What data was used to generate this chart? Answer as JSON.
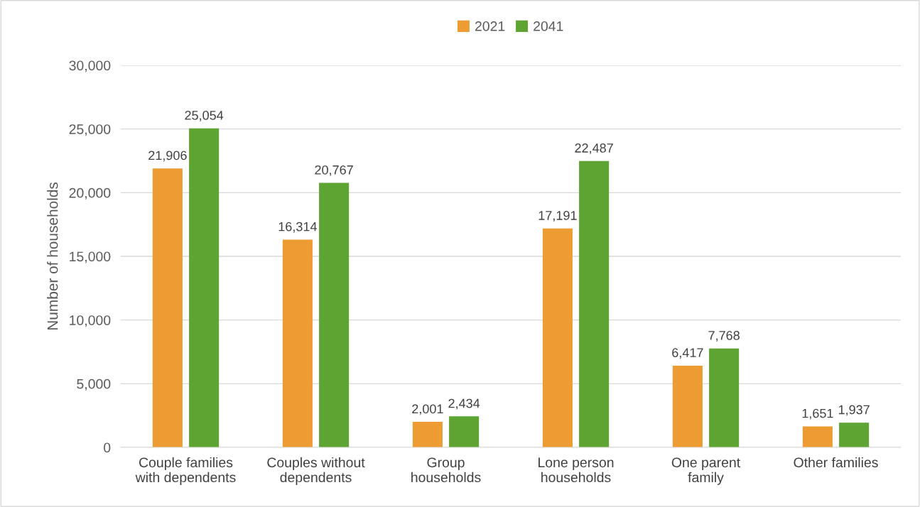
{
  "chart_data": {
    "type": "bar",
    "ylabel": "Number of households",
    "categories": [
      "Couple families\nwith dependents",
      "Couples without\ndependents",
      "Group\nhouseholds",
      "Lone person\nhouseholds",
      "One parent\nfamily",
      "Other families"
    ],
    "series": [
      {
        "name": "2021",
        "color": "#ed9c33",
        "values": [
          21906,
          16314,
          2001,
          17191,
          6417,
          1651
        ],
        "value_labels": [
          "21,906",
          "16,314",
          "2,001",
          "17,191",
          "6,417",
          "1,651"
        ]
      },
      {
        "name": "2041",
        "color": "#5ea432",
        "values": [
          25054,
          20767,
          2434,
          22487,
          7768,
          1937
        ],
        "value_labels": [
          "25,054",
          "20,767",
          "2,434",
          "22,487",
          "7,768",
          "1,937"
        ]
      }
    ],
    "ylim": [
      0,
      30000
    ],
    "yticks": [
      {
        "value": 0,
        "label": "0"
      },
      {
        "value": 5000,
        "label": "5,000"
      },
      {
        "value": 10000,
        "label": "10,000"
      },
      {
        "value": 15000,
        "label": "15,000"
      },
      {
        "value": 20000,
        "label": "20,000"
      },
      {
        "value": 25000,
        "label": "25,000"
      },
      {
        "value": 30000,
        "label": "30,000"
      }
    ],
    "grid": "y",
    "legend": "top"
  }
}
